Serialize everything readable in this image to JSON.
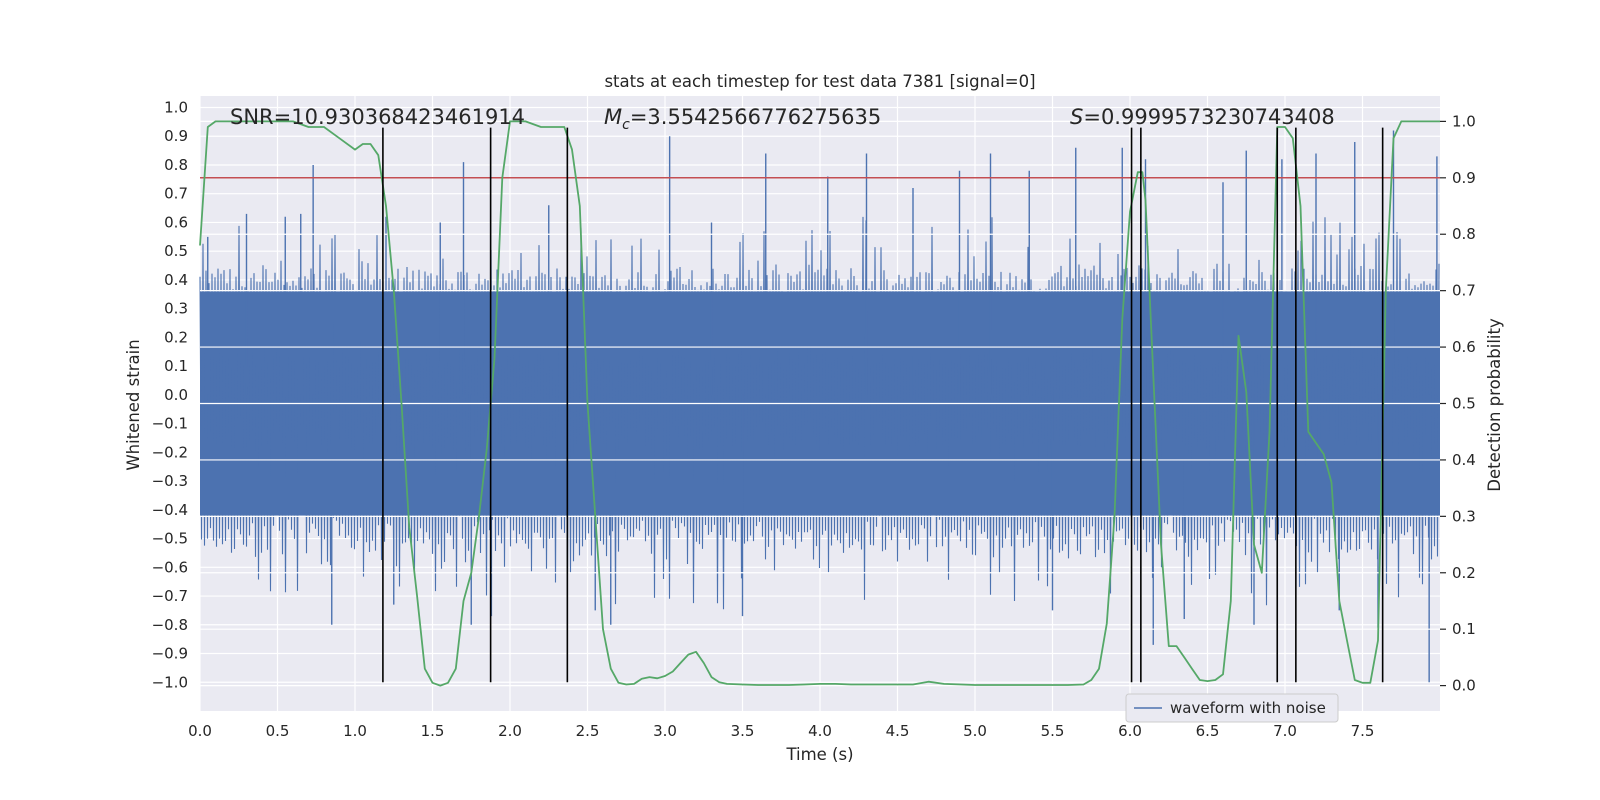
{
  "chart_data": {
    "type": "line",
    "title": "stats at each timestep for test data 7381 [signal=0]",
    "xlabel": "Time (s)",
    "ylabel": "Whitened strain",
    "y2label": "Detection probability",
    "xlim": [
      0.0,
      8.0
    ],
    "ylim": [
      -1.1,
      1.04
    ],
    "y2lim": [
      -0.045,
      1.045
    ],
    "xticks": [
      0.0,
      0.5,
      1.0,
      1.5,
      2.0,
      2.5,
      3.0,
      3.5,
      4.0,
      4.5,
      5.0,
      5.5,
      6.0,
      6.5,
      7.0,
      7.5
    ],
    "xtick_labels": [
      "0.0",
      "0.5",
      "1.0",
      "1.5",
      "2.0",
      "2.5",
      "3.0",
      "3.5",
      "4.0",
      "4.5",
      "5.0",
      "5.5",
      "6.0",
      "6.5",
      "7.0",
      "7.5"
    ],
    "yticks": [
      -1.0,
      -0.9,
      -0.8,
      -0.7,
      -0.6,
      -0.5,
      -0.4,
      -0.3,
      -0.2,
      -0.1,
      0.0,
      0.1,
      0.2,
      0.3,
      0.4,
      0.5,
      0.6,
      0.7,
      0.8,
      0.9,
      1.0
    ],
    "ytick_labels": [
      "−1.0",
      "−0.9",
      "−0.8",
      "−0.7",
      "−0.6",
      "−0.5",
      "−0.4",
      "−0.3",
      "−0.2",
      "−0.1",
      "0.0",
      "0.1",
      "0.2",
      "0.3",
      "0.4",
      "0.5",
      "0.6",
      "0.7",
      "0.8",
      "0.9",
      "1.0"
    ],
    "y2ticks": [
      0.0,
      0.1,
      0.2,
      0.3,
      0.4,
      0.5,
      0.6,
      0.7,
      0.8,
      0.9,
      1.0
    ],
    "y2tick_labels": [
      "0.0",
      "0.1",
      "0.2",
      "0.3",
      "0.4",
      "0.5",
      "0.6",
      "0.7",
      "0.8",
      "0.9",
      "1.0"
    ],
    "annotations": {
      "snr": "SNR=10.930368423461914",
      "mc_symbol": "M",
      "mc_sub": "c",
      "mc_value": "=3.5542566776275635",
      "s_symbol": "S",
      "s_value": "=0.9999573230743408"
    },
    "legend": {
      "label": "waveform with noise",
      "location": "lower-right"
    },
    "threshold": {
      "axis": "y2",
      "value": 0.9
    },
    "vlines_x": [
      1.18,
      1.875,
      2.37,
      6.01,
      6.07,
      6.95,
      7.07,
      7.63
    ],
    "vline_range": [
      -1.0,
      0.93
    ],
    "series": [
      {
        "name": "waveform with noise",
        "axis": "y1",
        "color": "#4c72b0",
        "style": "dense-noise",
        "core_band": [
          -0.42,
          0.36
        ],
        "typical_peak_range": [
          0.35,
          0.62
        ],
        "spike_points": [
          [
            0.05,
            0.55
          ],
          [
            0.3,
            0.63
          ],
          [
            0.55,
            0.62
          ],
          [
            0.65,
            0.63
          ],
          [
            0.73,
            0.8
          ],
          [
            0.85,
            -0.8
          ],
          [
            1.2,
            0.62
          ],
          [
            1.25,
            -0.73
          ],
          [
            1.55,
            0.6
          ],
          [
            1.7,
            0.81
          ],
          [
            1.75,
            -0.8
          ],
          [
            1.88,
            -0.77
          ],
          [
            2.25,
            0.66
          ],
          [
            2.55,
            -0.75
          ],
          [
            2.65,
            -0.8
          ],
          [
            3.03,
            0.9
          ],
          [
            3.3,
            0.6
          ],
          [
            3.5,
            -0.77
          ],
          [
            3.65,
            0.84
          ],
          [
            4.05,
            0.76
          ],
          [
            4.3,
            0.84
          ],
          [
            4.6,
            0.72
          ],
          [
            4.9,
            0.78
          ],
          [
            5.1,
            0.84
          ],
          [
            5.35,
            0.78
          ],
          [
            5.5,
            -0.75
          ],
          [
            5.65,
            0.86
          ],
          [
            5.95,
            0.86
          ],
          [
            6.1,
            0.82
          ],
          [
            6.15,
            -0.87
          ],
          [
            6.35,
            -0.78
          ],
          [
            6.6,
            0.74
          ],
          [
            6.75,
            0.85
          ],
          [
            6.8,
            -0.8
          ],
          [
            6.98,
            0.82
          ],
          [
            7.2,
            0.84
          ],
          [
            7.35,
            -0.75
          ],
          [
            7.45,
            0.88
          ],
          [
            7.6,
            -0.81
          ],
          [
            7.7,
            0.92
          ],
          [
            7.93,
            -1.0
          ],
          [
            7.98,
            0.83
          ]
        ]
      },
      {
        "name": "detection probability",
        "axis": "y2",
        "color": "#55a868",
        "t": [
          0.0,
          0.05,
          0.1,
          0.2,
          0.3,
          0.4,
          0.5,
          0.6,
          0.7,
          0.75,
          0.8,
          0.9,
          1.0,
          1.05,
          1.1,
          1.15,
          1.2,
          1.25,
          1.3,
          1.35,
          1.4,
          1.45,
          1.5,
          1.55,
          1.6,
          1.65,
          1.7,
          1.75,
          1.8,
          1.85,
          1.9,
          1.95,
          2.0,
          2.05,
          2.1,
          2.2,
          2.3,
          2.35,
          2.4,
          2.45,
          2.5,
          2.55,
          2.6,
          2.65,
          2.7,
          2.75,
          2.8,
          2.85,
          2.9,
          2.95,
          3.0,
          3.05,
          3.1,
          3.15,
          3.2,
          3.25,
          3.3,
          3.35,
          3.4,
          3.5,
          3.6,
          3.7,
          3.8,
          3.9,
          4.0,
          4.1,
          4.2,
          4.4,
          4.6,
          4.7,
          4.8,
          5.0,
          5.2,
          5.4,
          5.6,
          5.7,
          5.75,
          5.8,
          5.85,
          5.9,
          5.95,
          6.0,
          6.05,
          6.08,
          6.1,
          6.15,
          6.2,
          6.25,
          6.3,
          6.35,
          6.4,
          6.45,
          6.5,
          6.55,
          6.6,
          6.65,
          6.7,
          6.75,
          6.8,
          6.85,
          6.9,
          6.95,
          7.0,
          7.05,
          7.1,
          7.15,
          7.2,
          7.25,
          7.3,
          7.35,
          7.4,
          7.45,
          7.5,
          7.55,
          7.6,
          7.65,
          7.7,
          7.75,
          7.8,
          8.0
        ],
        "p": [
          0.78,
          0.99,
          1.0,
          1.0,
          1.0,
          1.0,
          1.0,
          1.0,
          0.99,
          0.99,
          0.99,
          0.97,
          0.95,
          0.96,
          0.96,
          0.94,
          0.85,
          0.7,
          0.5,
          0.28,
          0.16,
          0.03,
          0.005,
          0.0,
          0.005,
          0.03,
          0.15,
          0.2,
          0.3,
          0.42,
          0.58,
          0.9,
          1.0,
          1.0,
          1.0,
          0.99,
          0.99,
          0.99,
          0.95,
          0.85,
          0.5,
          0.3,
          0.1,
          0.03,
          0.005,
          0.002,
          0.003,
          0.012,
          0.015,
          0.013,
          0.017,
          0.025,
          0.04,
          0.055,
          0.06,
          0.04,
          0.015,
          0.006,
          0.003,
          0.002,
          0.001,
          0.001,
          0.001,
          0.002,
          0.003,
          0.003,
          0.002,
          0.002,
          0.002,
          0.007,
          0.003,
          0.001,
          0.001,
          0.001,
          0.001,
          0.002,
          0.01,
          0.03,
          0.11,
          0.3,
          0.65,
          0.84,
          0.91,
          0.91,
          0.86,
          0.55,
          0.25,
          0.07,
          0.07,
          0.05,
          0.03,
          0.01,
          0.008,
          0.01,
          0.02,
          0.15,
          0.62,
          0.52,
          0.25,
          0.2,
          0.45,
          0.99,
          0.99,
          0.97,
          0.85,
          0.45,
          0.43,
          0.41,
          0.36,
          0.15,
          0.08,
          0.01,
          0.005,
          0.005,
          0.08,
          0.7,
          0.97,
          1.0,
          1.0,
          1.0
        ]
      }
    ]
  }
}
